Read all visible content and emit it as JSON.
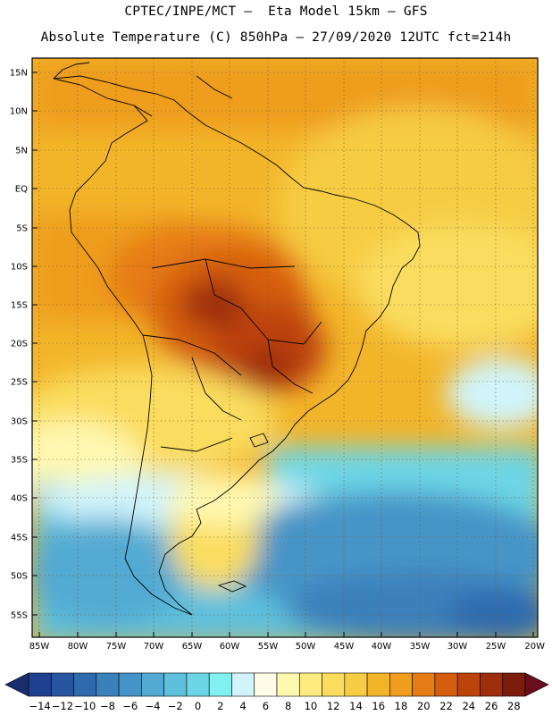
{
  "header": {
    "line1": "CPTEC/INPE/MCT —  Eta Model 15km — GFS",
    "line2": "Absolute Temperature (C) 850hPa — 27/09/2020 12UTC fct=214h"
  },
  "map": {
    "lat_labels": [
      "15N",
      "10N",
      "5N",
      "EQ",
      "5S",
      "10S",
      "15S",
      "20S",
      "25S",
      "30S",
      "35S",
      "40S",
      "45S",
      "50S",
      "55S"
    ],
    "lon_labels": [
      "85W",
      "80W",
      "75W",
      "70W",
      "65W",
      "60W",
      "55W",
      "50W",
      "45W",
      "40W",
      "35W",
      "30W",
      "25W",
      "20W"
    ]
  },
  "colorbar": {
    "labels": [
      "-14",
      "-12",
      "-10",
      "-8",
      "-6",
      "-4",
      "-2",
      "0",
      "2",
      "4",
      "6",
      "8",
      "10",
      "12",
      "14",
      "16",
      "18",
      "20",
      "22",
      "24",
      "26",
      "28"
    ],
    "colors": [
      "#1f3f8f",
      "#27559f",
      "#2f6aae",
      "#3a80bb",
      "#4694c7",
      "#52aad3",
      "#5fc0dd",
      "#6dd6e6",
      "#80f0f0",
      "#d0f4fa",
      "#fffbe6",
      "#fff8b0",
      "#ffeb7f",
      "#fadd5e",
      "#f6cc43",
      "#f2b52a",
      "#ee9d1c",
      "#e67c16",
      "#d45d10",
      "#bd430d",
      "#9f2e0b",
      "#7c1c0b"
    ],
    "arrow_left": "#1a2d6e",
    "arrow_right": "#6a0d1c"
  }
}
